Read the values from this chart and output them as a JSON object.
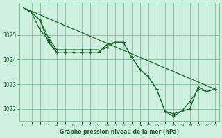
{
  "background_color": "#cff0e0",
  "grid_color": "#66bb88",
  "line_color": "#1a6b2a",
  "marker_color": "#1a6b2a",
  "xlabel": "Graphe pression niveau de la mer (hPa)",
  "xlim": [
    -0.5,
    23.5
  ],
  "ylim": [
    1021.5,
    1026.3
  ],
  "yticks": [
    1022,
    1023,
    1024,
    1025
  ],
  "xticks": [
    0,
    1,
    2,
    3,
    4,
    5,
    6,
    7,
    8,
    9,
    10,
    11,
    12,
    13,
    14,
    15,
    16,
    17,
    18,
    19,
    20,
    21,
    22,
    23
  ],
  "line1_x": [
    0,
    1,
    2,
    3,
    4,
    5,
    6,
    7,
    8,
    9,
    10,
    11,
    12,
    13,
    14,
    15,
    16,
    17,
    18,
    19,
    20,
    21,
    22,
    23
  ],
  "line1_y": [
    1026.1,
    1025.9,
    1025.2,
    1024.8,
    1024.3,
    1024.3,
    1024.3,
    1024.3,
    1024.3,
    1024.3,
    1024.6,
    1024.7,
    1024.7,
    1024.1,
    1023.6,
    1023.3,
    1022.8,
    1021.9,
    1021.8,
    1021.9,
    1022.3,
    1022.8,
    1022.7,
    1022.8
  ],
  "line2_x": [
    0,
    1,
    2,
    3,
    4,
    5,
    6,
    7,
    8,
    9,
    10,
    11,
    12,
    13,
    14,
    15,
    16,
    17,
    18,
    19,
    20,
    21,
    22,
    23
  ],
  "line2_y": [
    1026.1,
    1025.9,
    1025.6,
    1024.7,
    1024.3,
    1024.3,
    1024.3,
    1024.3,
    1024.3,
    1024.3,
    1024.5,
    1024.7,
    1024.7,
    1024.1,
    1023.6,
    1023.3,
    1022.8,
    1021.9,
    1021.7,
    1021.9,
    1022.0,
    1022.9,
    1022.7,
    1022.8
  ],
  "line3_x": [
    0,
    1,
    2,
    3,
    4,
    5,
    6,
    7,
    8,
    9
  ],
  "line3_y": [
    1026.1,
    1025.9,
    1025.6,
    1024.9,
    1024.4,
    1024.4,
    1024.4,
    1024.4,
    1024.4,
    1024.4
  ],
  "line4_x": [
    0,
    23
  ],
  "line4_y": [
    1026.1,
    1022.8
  ]
}
